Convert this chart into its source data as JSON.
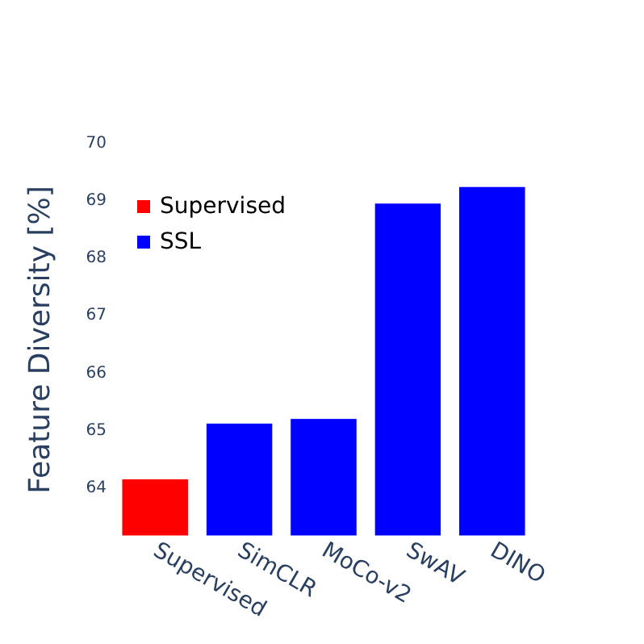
{
  "chart_data": {
    "type": "bar",
    "categories": [
      "Supervised",
      "SimCLR",
      "MoCo-v2",
      "SwAV",
      "DINO"
    ],
    "ylabel": "Feature Diversity [%]",
    "ylim": [
      63.17,
      70
    ],
    "yticks": [
      64,
      65,
      66,
      67,
      68,
      69,
      70
    ],
    "grid": false,
    "legend": "top left",
    "series": [
      {
        "name": "Supervised",
        "color": "#ff0000",
        "values": [
          64.17,
          null,
          null,
          null,
          null
        ]
      },
      {
        "name": "SSL",
        "color": "#0000ff",
        "values": [
          null,
          65.14,
          65.22,
          68.97,
          69.26
        ]
      }
    ]
  }
}
